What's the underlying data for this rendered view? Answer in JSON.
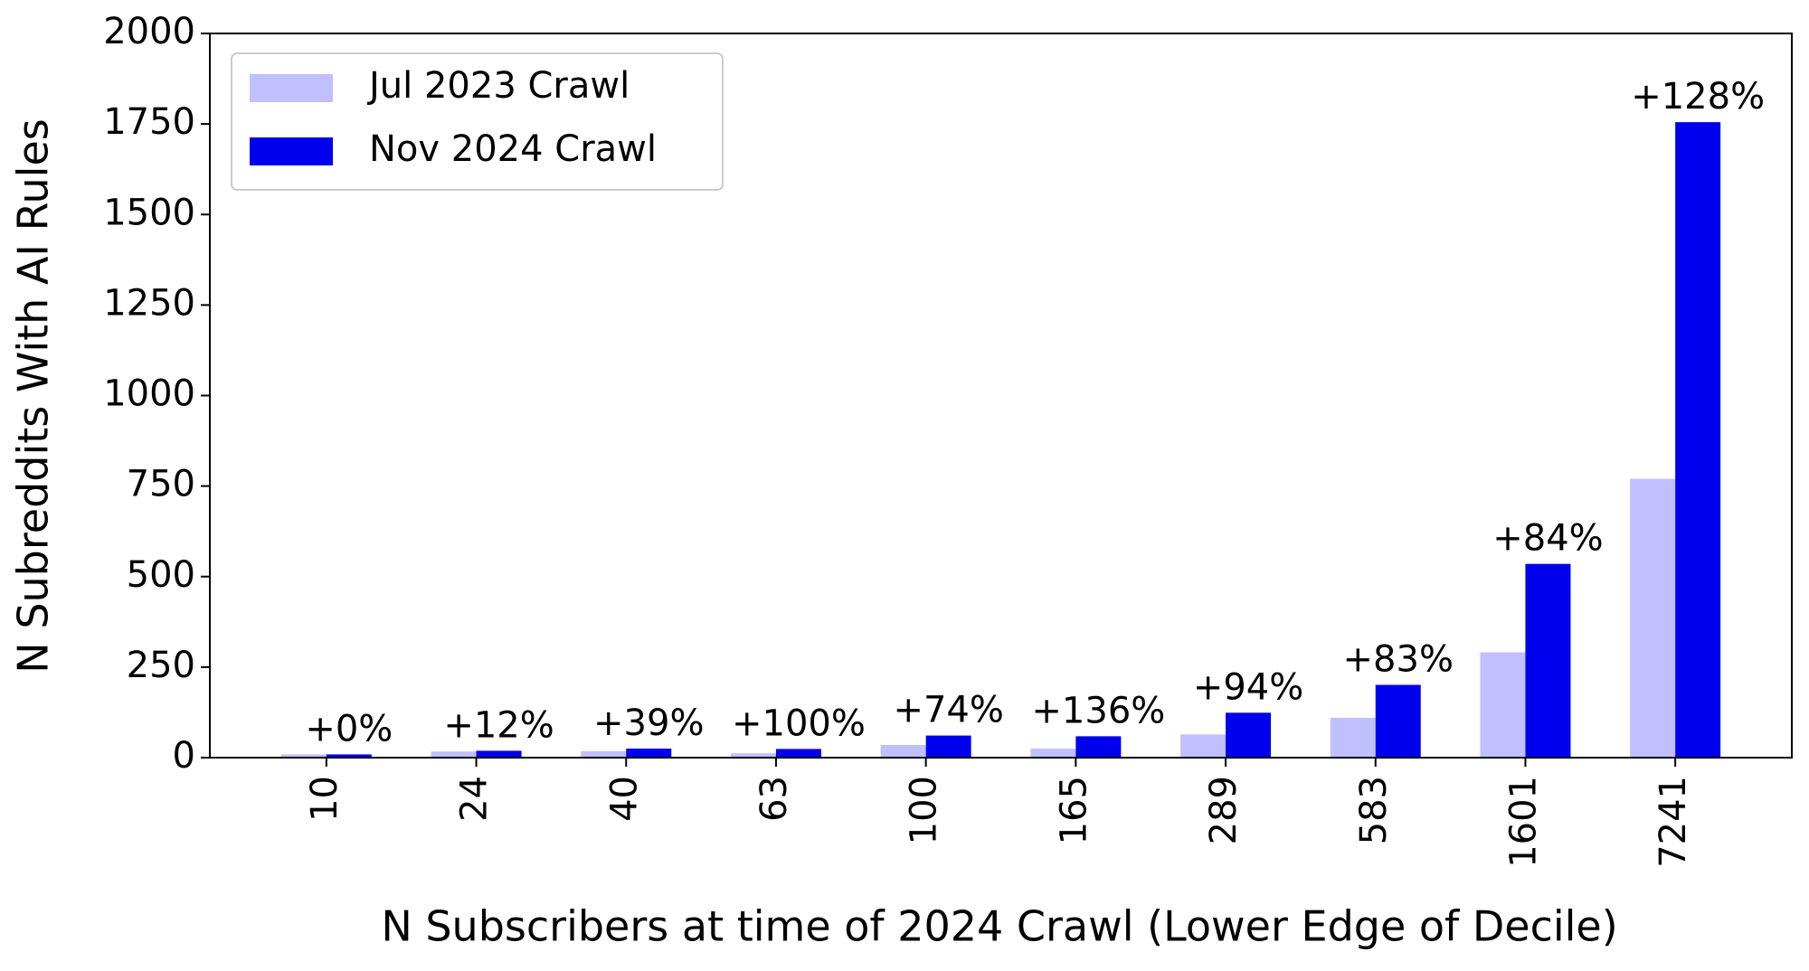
{
  "chart_data": {
    "type": "bar",
    "x_label": "N Subscribers at time of 2024 Crawl (Lower Edge of Decile)",
    "y_label": "N Subreddits With AI Rules",
    "categories": [
      "10",
      "24",
      "40",
      "63",
      "100",
      "165",
      "289",
      "583",
      "1601",
      "7241"
    ],
    "series": [
      {
        "name": "Jul 2023 Crawl",
        "color": "#c0c0ff",
        "values": [
          9,
          17,
          18,
          12,
          35,
          25,
          64,
          110,
          291,
          770
        ]
      },
      {
        "name": "Nov 2024 Crawl",
        "color": "#0000ee",
        "values": [
          9,
          19,
          25,
          24,
          61,
          59,
          124,
          201,
          535,
          1755
        ]
      }
    ],
    "annotations": [
      "+0%",
      "+12%",
      "+39%",
      "+100%",
      "+74%",
      "+136%",
      "+94%",
      "+83%",
      "+84%",
      "+128%"
    ],
    "ylim": [
      0,
      2000
    ],
    "yticks": [
      0,
      250,
      500,
      750,
      1000,
      1250,
      1500,
      1750,
      2000
    ],
    "legend": "upper left"
  }
}
